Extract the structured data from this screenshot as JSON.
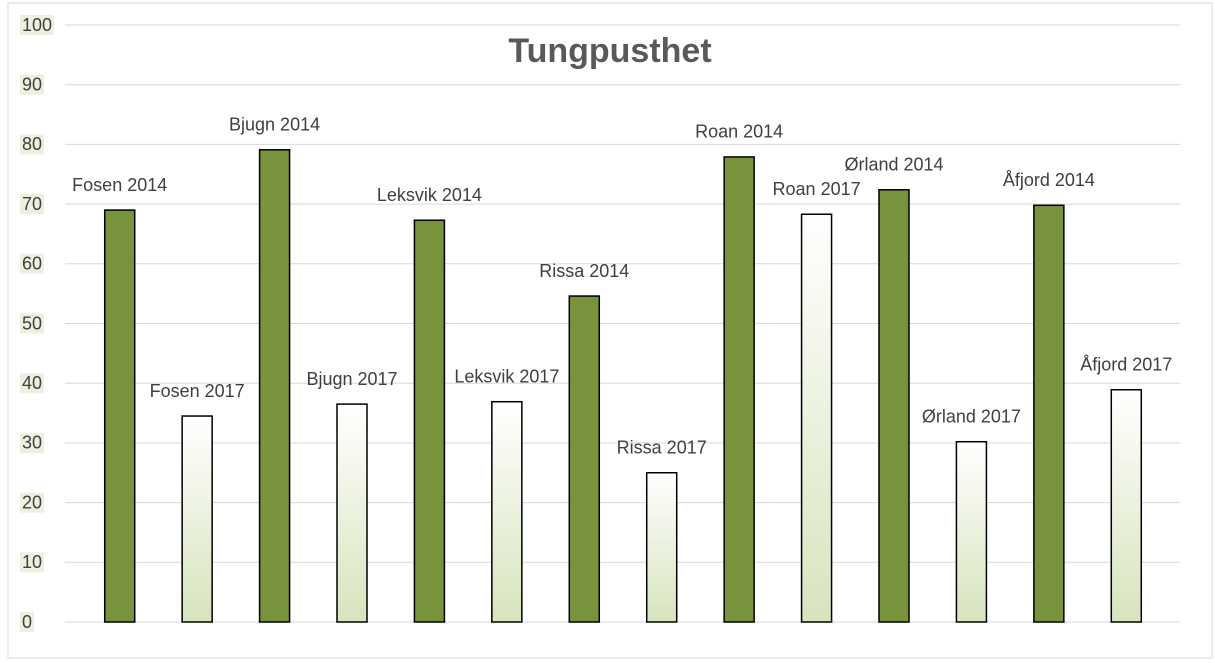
{
  "chart_data": {
    "type": "bar",
    "title": "Tungpusthet",
    "categories": [
      "Fosen 2014",
      "Fosen 2017",
      "Bjugn 2014",
      "Bjugn 2017",
      "Leksvik 2014",
      "Leksvik 2017",
      "Rissa 2014",
      "Rissa 2017",
      "Roan 2014",
      "Roan 2017",
      "Ørland 2014",
      "Ørland 2017",
      "Åfjord 2014",
      "Åfjord 2017"
    ],
    "values": [
      69.0,
      34.5,
      79.1,
      36.5,
      67.3,
      36.9,
      54.6,
      25.0,
      77.9,
      68.3,
      72.4,
      30.2,
      69.8,
      38.9
    ],
    "colors": [
      "#77933c",
      "#d7e4bd",
      "#77933c",
      "#d7e4bd",
      "#77933c",
      "#d7e4bd",
      "#77933c",
      "#d7e4bd",
      "#77933c",
      "#d7e4bd",
      "#77933c",
      "#d7e4bd",
      "#77933c",
      "#d7e4bd"
    ],
    "ylim": [
      0,
      100
    ],
    "yticks": [
      0,
      10,
      20,
      30,
      40,
      50,
      60,
      70,
      80,
      90,
      100
    ],
    "grid": true
  }
}
